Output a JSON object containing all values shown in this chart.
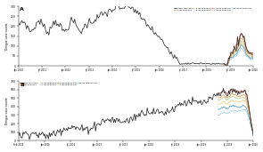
{
  "title_a": "A",
  "title_b": "B",
  "ylabel": "Dengue case counts",
  "background": "#ffffff",
  "colors_observed": "#2b2b2b",
  "colors_1wk": "#e07b2a",
  "colors_2wk": "#f0c060",
  "colors_4wk": "#88c4e0",
  "colors_rf_1wk": "#c0392b",
  "colors_rf_2wk": "#a8c880",
  "colors_rf_4wk": "#2e86c1",
  "ylim_a": [
    0,
    300
  ],
  "ylim_b": [
    0,
    700
  ],
  "yticks_a": [
    0,
    50,
    100,
    150,
    200,
    250,
    300
  ],
  "yticks_b": [
    0,
    100,
    200,
    300,
    400,
    500,
    600,
    700
  ],
  "xtick_labels_a": [
    "Jan 2010",
    "Jul 2011",
    "Jan 2012",
    "Jul 2013",
    "Jan 2014",
    "Jul 2015",
    "Jan 2016",
    "Jul 2017",
    "Jan 2018",
    "Jul 2019",
    "Jan 2020"
  ],
  "xtick_labels_b": [
    "Feb 2015",
    "Jan 2016",
    "Jul 2016",
    "Jan 2017",
    "Jul 2017",
    "Jan 2018",
    "Jul 2018",
    "Jan 2019",
    "Jul 2019",
    "Jan 2020"
  ]
}
